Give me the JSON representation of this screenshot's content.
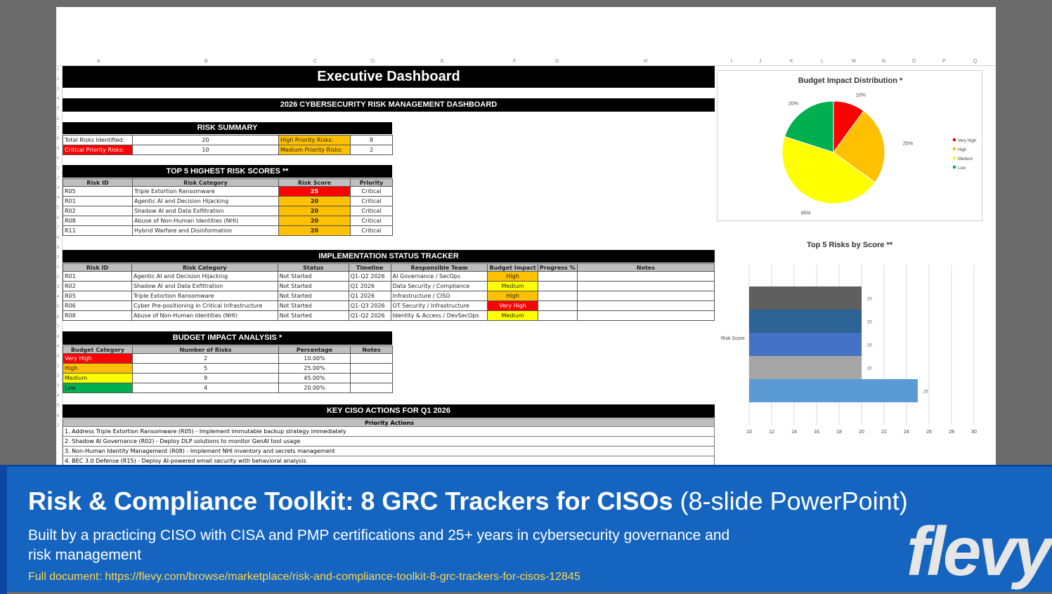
{
  "columns": [
    "A",
    "B",
    "C",
    "D",
    "E",
    "F",
    "G",
    "H",
    "I",
    "J",
    "K",
    "L",
    "M",
    "N",
    "O",
    "P",
    "Q"
  ],
  "row_numbers": [
    "1",
    "2",
    "3",
    "4",
    "5",
    "6",
    "7",
    "8",
    "9",
    "0",
    "1",
    "2",
    "3",
    "4",
    "5",
    "6",
    "7",
    "8",
    "9",
    "0",
    "1",
    "2",
    "3",
    "4",
    "5",
    "6",
    "7",
    "8",
    "9",
    "0",
    "1",
    "2",
    "3",
    "4",
    "5",
    "6",
    "7"
  ],
  "dashboard_title": "Executive Dashboard",
  "dashboard_subtitle": "2026 CYBERSECURITY RISK MANAGEMENT DASHBOARD",
  "risk_summary": {
    "heading": "RISK SUMMARY",
    "total_label": "Total Risks Identified:",
    "total_value": "20",
    "high_label": "High Priority Risks:",
    "high_value": "8",
    "critical_label": "Critical Priority Risks:",
    "critical_value": "10",
    "medium_label": "Medium Priority Risks:",
    "medium_value": "2"
  },
  "top5": {
    "heading": "TOP 5 HIGHEST RISK SCORES **",
    "headers": [
      "Risk ID",
      "Risk Category",
      "Risk Score",
      "Priority"
    ],
    "rows": [
      [
        "R05",
        "Triple Extortion Ransomware",
        "25",
        "Critical"
      ],
      [
        "R01",
        "Agentic AI and Decision Hijacking",
        "20",
        "Critical"
      ],
      [
        "R02",
        "Shadow AI and Data Exfiltration",
        "20",
        "Critical"
      ],
      [
        "R08",
        "Abuse of Non-Human Identities (NHI)",
        "20",
        "Critical"
      ],
      [
        "R11",
        "Hybrid Warfare and Disinformation",
        "20",
        "Critical"
      ]
    ]
  },
  "tracker": {
    "heading": "IMPLEMENTATION STATUS TRACKER",
    "headers": [
      "Risk ID",
      "Risk Category",
      "Status",
      "Timeline",
      "Responsible Team",
      "Budget Impact",
      "Progress %",
      "Notes"
    ],
    "rows": [
      [
        "R01",
        "Agentic AI and Decision Hijacking",
        "Not Started",
        "Q1-Q2 2026",
        "AI Governance / SecOps",
        "High",
        "",
        ""
      ],
      [
        "R02",
        "Shadow AI and Data Exfiltration",
        "Not Started",
        "Q1 2026",
        "Data Security / Compliance",
        "Medium",
        "",
        ""
      ],
      [
        "R05",
        "Triple Extortion Ransomware",
        "Not Started",
        "Q1 2026",
        "Infrastructure / CISO",
        "High",
        "",
        ""
      ],
      [
        "R06",
        "Cyber Pre-positioning in Critical Infrastructure",
        "Not Started",
        "Q1-Q3 2026",
        "OT Security / Infrastructure",
        "Very High",
        "",
        ""
      ],
      [
        "R08",
        "Abuse of Non-Human Identities (NHI)",
        "Not Started",
        "Q1-Q2 2026",
        "Identity & Access / DevSecOps",
        "Medium",
        "",
        ""
      ]
    ]
  },
  "budget": {
    "heading": "BUDGET IMPACT ANALYSIS *",
    "headers": [
      "Budget Category",
      "Number of Risks",
      "Percentage",
      "Notes"
    ],
    "rows": [
      [
        "Very High",
        "2",
        "10.00%",
        ""
      ],
      [
        "High",
        "5",
        "25.00%",
        ""
      ],
      [
        "Medium",
        "9",
        "45.00%",
        ""
      ],
      [
        "Low",
        "4",
        "20.00%",
        ""
      ]
    ]
  },
  "actions": {
    "heading": "KEY CISO ACTIONS FOR Q1 2026",
    "subheading": "Priority Actions",
    "items": [
      "1. Address Triple Extortion Ransomware (R05) - Implement immutable backup strategy immediately",
      "2. Shadow AI Governance (R02) - Deploy DLP solutions to monitor GenAI tool usage",
      "3. Non-Human Identity Management (R08) - Implement NHI inventory and secrets management",
      "4. BEC 3.0 Defense (R15) - Deploy AI-powered email security with behavioral analysis"
    ]
  },
  "colors": {
    "very_high": "#ff0000",
    "high": "#ffc000",
    "medium": "#ffff00",
    "low": "#00b050"
  },
  "chart_data": [
    {
      "type": "pie",
      "title": "Budget Impact Distribution *",
      "categories": [
        "Very High",
        "High",
        "Medium",
        "Low"
      ],
      "values": [
        10,
        25,
        45,
        20
      ],
      "labels": [
        "10%",
        "25%",
        "45%",
        "20%"
      ],
      "colors": [
        "#ff0000",
        "#ffc000",
        "#ffff00",
        "#00b050"
      ],
      "legend": "right"
    },
    {
      "type": "bar",
      "orientation": "horizontal",
      "title": "Top 5 Risks by Score **",
      "ylabel": "Risk Score",
      "values": [
        20,
        20,
        20,
        20,
        25
      ],
      "colors": [
        "#5f5f5f",
        "#2e6395",
        "#4472c4",
        "#a5a5a5",
        "#5b9bd5"
      ],
      "xlim": [
        10,
        30
      ],
      "xticks": [
        "10",
        "12",
        "14",
        "16",
        "18",
        "20",
        "22",
        "24",
        "26",
        "28",
        "30"
      ],
      "grid": true
    }
  ],
  "banner": {
    "title_bold": "Risk & Compliance Toolkit: 8 GRC Trackers for CISOs",
    "title_normal": " (8-slide PowerPoint)",
    "subtitle": "Built by a practicing CISO with CISA and PMP certifications and 25+ years in cybersecurity governance and risk management",
    "link": "Full document: https://flevy.com/browse/marketplace/risk-and-compliance-toolkit-8-grc-trackers-for-cisos-12845",
    "logo": "flevy"
  }
}
